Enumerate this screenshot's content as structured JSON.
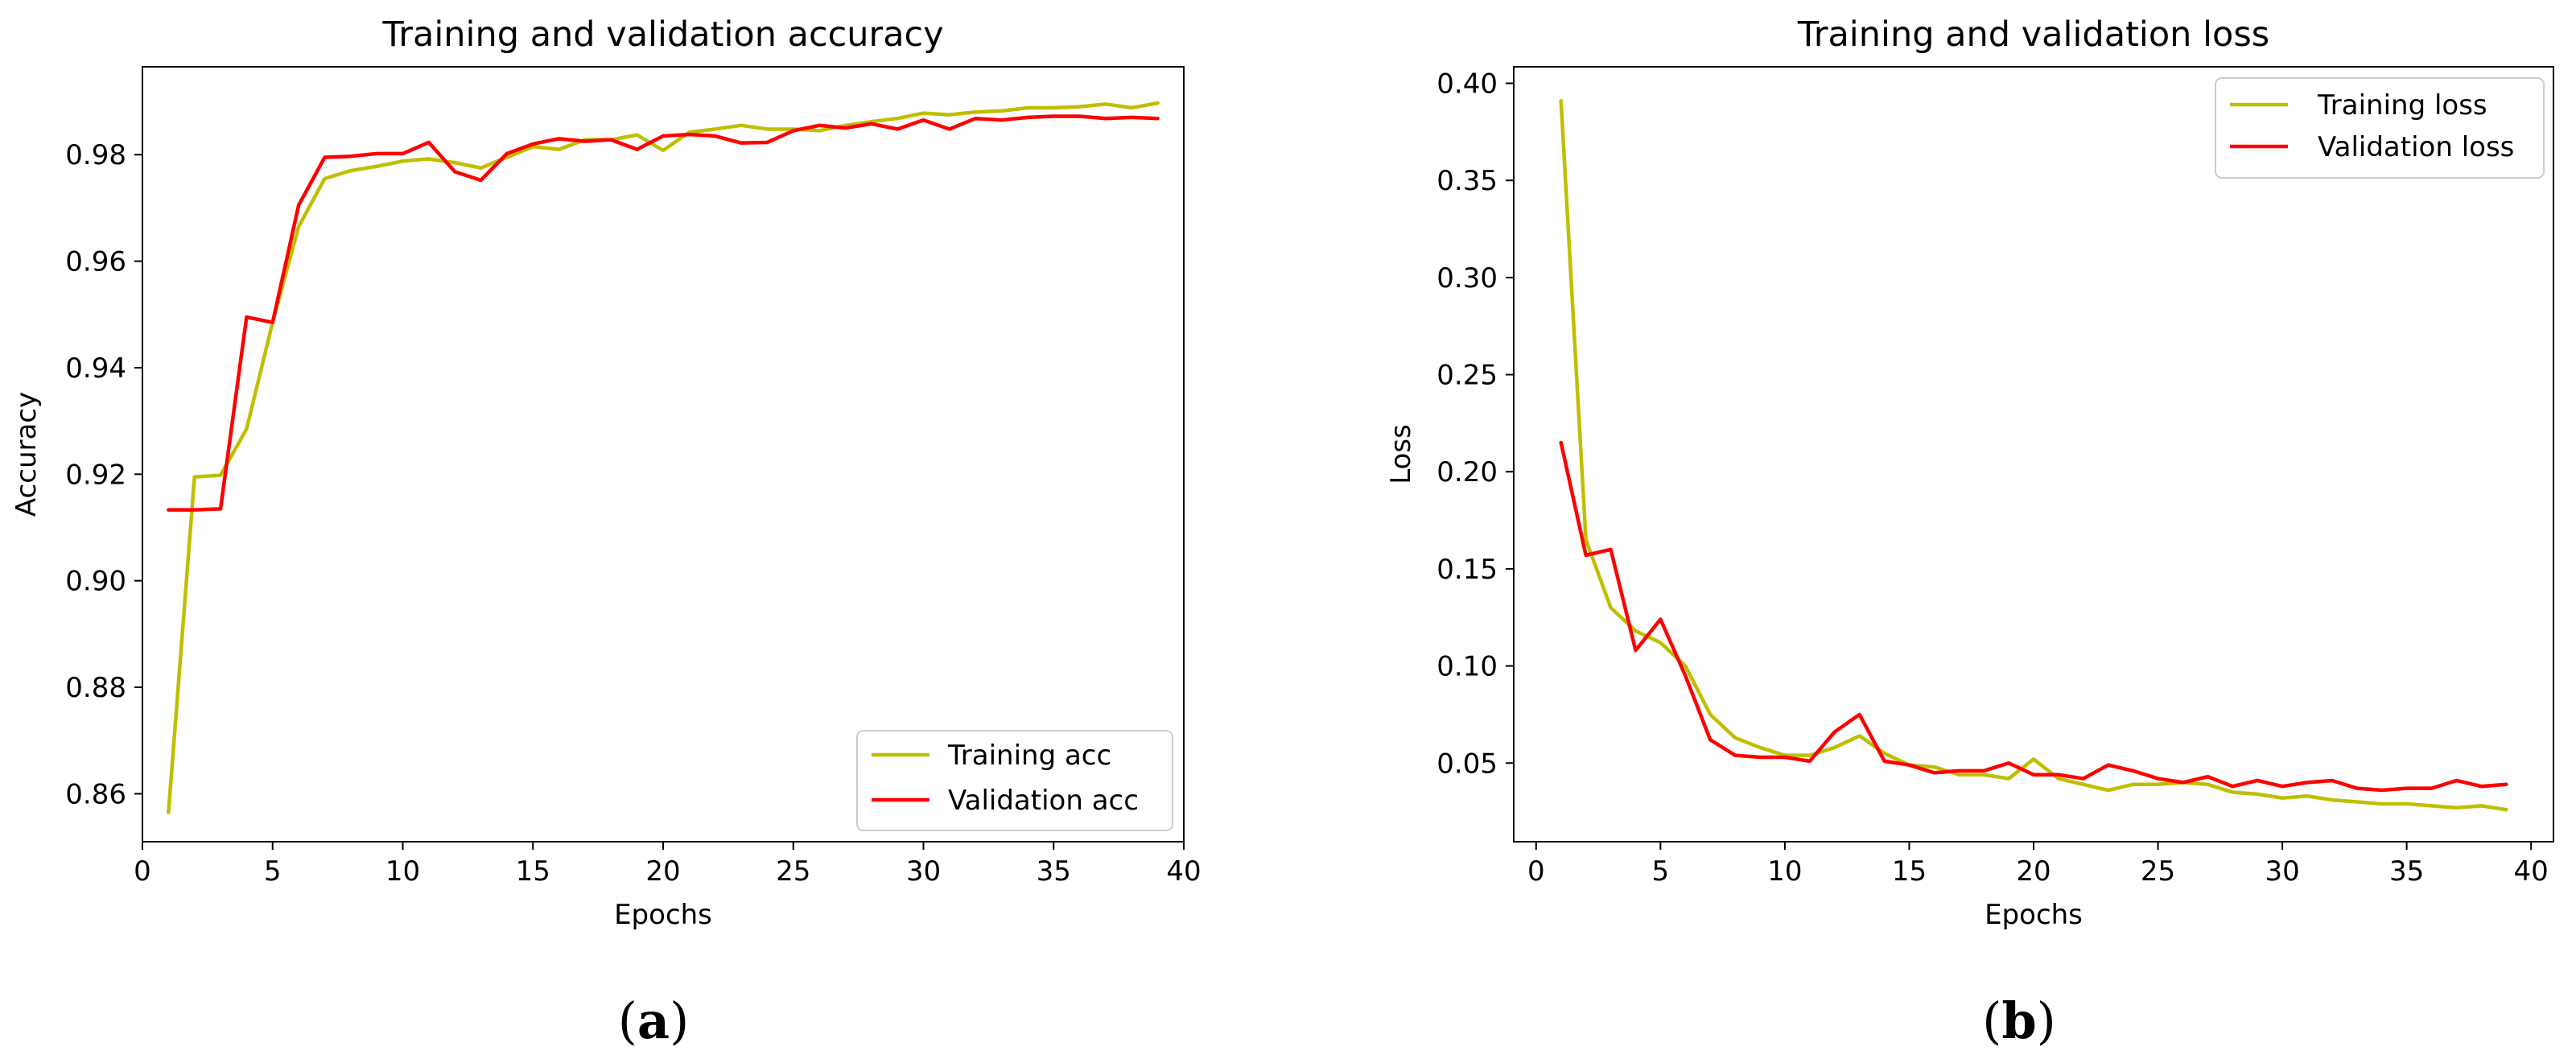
{
  "chart_data": [
    {
      "type": "line",
      "title": "Training and validation accuracy",
      "xlabel": "Epochs",
      "ylabel": "Accuracy",
      "xlim": [
        0,
        40
      ],
      "ylim": [
        0.851,
        0.9965
      ],
      "xticks": [
        0,
        5,
        10,
        15,
        20,
        25,
        30,
        35,
        40
      ],
      "yticks": [
        0.86,
        0.88,
        0.9,
        0.92,
        0.94,
        0.96,
        0.98
      ],
      "ytick_decimals": 2,
      "grid": false,
      "legend_position": "lower-right",
      "caption_label": "a",
      "x": [
        1,
        2,
        3,
        4,
        5,
        6,
        7,
        8,
        9,
        10,
        11,
        12,
        13,
        14,
        15,
        16,
        17,
        18,
        19,
        20,
        21,
        22,
        23,
        24,
        25,
        26,
        27,
        28,
        29,
        30,
        31,
        32,
        33,
        34,
        35,
        36,
        37,
        38,
        39
      ],
      "series": [
        {
          "name": "Training acc",
          "color": "#bfbf00",
          "values": [
            0.8565,
            0.9195,
            0.9198,
            0.9285,
            0.9485,
            0.9665,
            0.9755,
            0.977,
            0.9778,
            0.9788,
            0.9792,
            0.9785,
            0.9775,
            0.9795,
            0.9815,
            0.981,
            0.9828,
            0.9828,
            0.9837,
            0.9808,
            0.9842,
            0.9848,
            0.9855,
            0.9848,
            0.9848,
            0.9845,
            0.9855,
            0.9862,
            0.9868,
            0.9878,
            0.9875,
            0.988,
            0.9882,
            0.9888,
            0.9888,
            0.989,
            0.9895,
            0.9888,
            0.9897
          ]
        },
        {
          "name": "Validation acc",
          "color": "#ff0000",
          "values": [
            0.9133,
            0.9133,
            0.9135,
            0.9495,
            0.9485,
            0.9705,
            0.9795,
            0.9797,
            0.9802,
            0.9802,
            0.9823,
            0.9768,
            0.9752,
            0.9802,
            0.982,
            0.983,
            0.9825,
            0.9828,
            0.981,
            0.9835,
            0.9838,
            0.9835,
            0.9822,
            0.9823,
            0.9845,
            0.9855,
            0.985,
            0.9858,
            0.9848,
            0.9865,
            0.9848,
            0.9868,
            0.9865,
            0.987,
            0.9872,
            0.9872,
            0.9868,
            0.987,
            0.9868
          ]
        }
      ]
    },
    {
      "type": "line",
      "title": "Training and validation loss",
      "xlabel": "Epochs",
      "ylabel": "Loss",
      "xlim": [
        -0.9,
        40.9
      ],
      "ylim": [
        0.0095,
        0.4085
      ],
      "xticks": [
        0,
        5,
        10,
        15,
        20,
        25,
        30,
        35,
        40
      ],
      "yticks": [
        0.05,
        0.1,
        0.15,
        0.2,
        0.25,
        0.3,
        0.35,
        0.4
      ],
      "ytick_decimals": 2,
      "grid": false,
      "legend_position": "upper-right",
      "caption_label": "b",
      "x": [
        1,
        2,
        3,
        4,
        5,
        6,
        7,
        8,
        9,
        10,
        11,
        12,
        13,
        14,
        15,
        16,
        17,
        18,
        19,
        20,
        21,
        22,
        23,
        24,
        25,
        26,
        27,
        28,
        29,
        30,
        31,
        32,
        33,
        34,
        35,
        36,
        37,
        38,
        39
      ],
      "series": [
        {
          "name": "Training loss",
          "color": "#bfbf00",
          "values": [
            0.391,
            0.165,
            0.13,
            0.118,
            0.112,
            0.1,
            0.075,
            0.063,
            0.058,
            0.054,
            0.054,
            0.058,
            0.064,
            0.055,
            0.049,
            0.048,
            0.044,
            0.044,
            0.042,
            0.052,
            0.042,
            0.039,
            0.036,
            0.039,
            0.039,
            0.04,
            0.039,
            0.035,
            0.034,
            0.032,
            0.033,
            0.031,
            0.03,
            0.029,
            0.029,
            0.028,
            0.027,
            0.028,
            0.026
          ]
        },
        {
          "name": "Validation loss",
          "color": "#ff0000",
          "values": [
            0.215,
            0.157,
            0.16,
            0.108,
            0.124,
            0.095,
            0.062,
            0.054,
            0.053,
            0.053,
            0.051,
            0.066,
            0.075,
            0.051,
            0.049,
            0.045,
            0.046,
            0.046,
            0.05,
            0.044,
            0.044,
            0.042,
            0.049,
            0.046,
            0.042,
            0.04,
            0.043,
            0.038,
            0.041,
            0.038,
            0.04,
            0.041,
            0.037,
            0.036,
            0.037,
            0.037,
            0.041,
            0.038,
            0.039
          ]
        }
      ]
    }
  ]
}
